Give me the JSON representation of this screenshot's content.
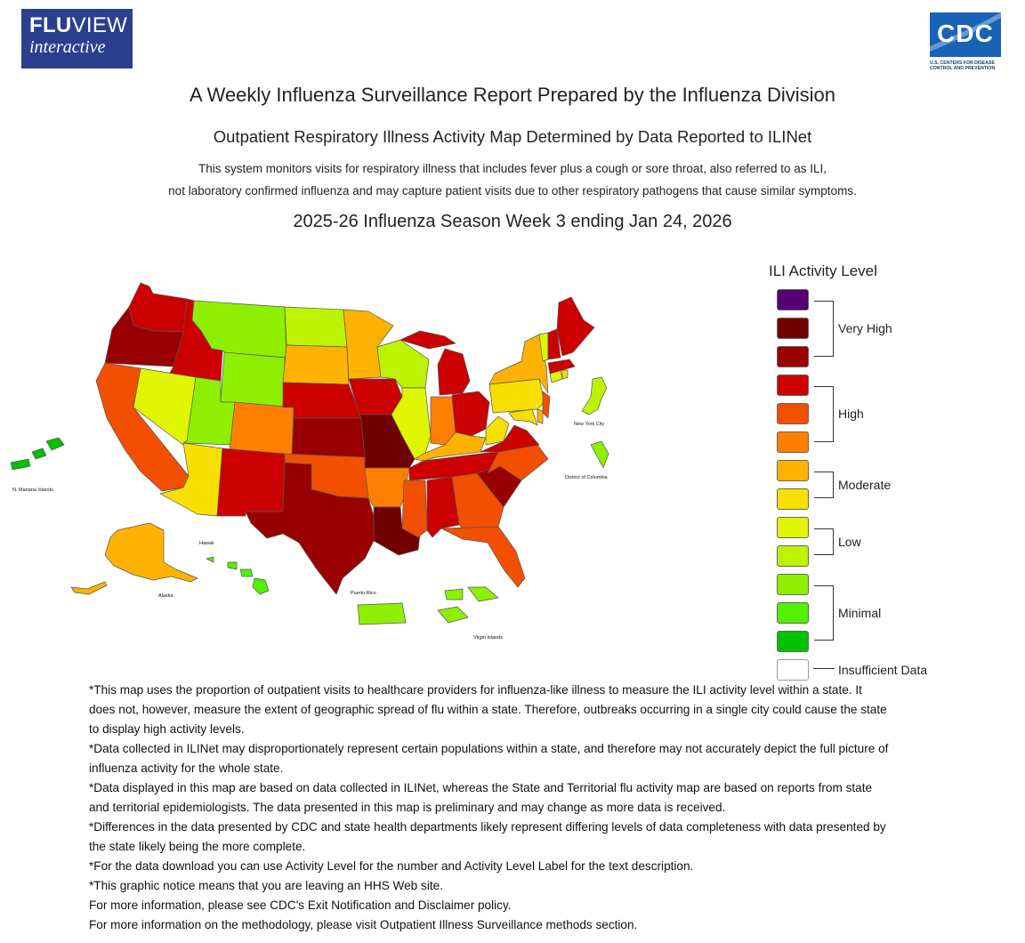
{
  "logo": {
    "fluview_bold": "FLU",
    "fluview_rest": "VIEW",
    "fluview_sub": "interactive",
    "cdc": "CDC",
    "cdc_sub1": "U.S. CENTERS FOR DISEASE",
    "cdc_sub2": "CONTROL AND PREVENTION"
  },
  "header": {
    "title": "A Weekly Influenza Surveillance Report Prepared by the Influenza Division",
    "subtitle": "Outpatient Respiratory Illness Activity Map Determined by Data Reported to ILINet",
    "desc1": "This system monitors visits for respiratory illness that includes fever plus a cough or sore throat, also referred to as ILI,",
    "desc2": "not laboratory confirmed influenza and may capture patient visits due to other respiratory pathogens that cause similar symptoms.",
    "season": "2025-26 Influenza Season Week 3 ending Jan 24, 2026"
  },
  "legend": {
    "title": "ILI Activity Level",
    "swatches": [
      "#540073",
      "#730000",
      "#990000",
      "#cc0000",
      "#f24f00",
      "#ff8000",
      "#ffb300",
      "#f7df00",
      "#e0f500",
      "#bdf200",
      "#8ef000",
      "#55f000",
      "#00c200",
      "#ffffff"
    ],
    "groups": [
      "Very High",
      "High",
      "Moderate",
      "Low",
      "Minimal",
      "Insufficient Data"
    ]
  },
  "map_labels": {
    "mariana": "N. Mariana Islands",
    "hawaii": "Hawaii",
    "alaska": "Alaska",
    "puerto_rico": "Puerto Rico",
    "virgin_islands": "Virgin Islands",
    "nyc": "New York City",
    "dc": "District of Columbia"
  },
  "notes": [
    "*This map uses the proportion of outpatient visits to healthcare providers for influenza-like illness to measure the ILI activity level within a state. It does not, however, measure the extent of geographic spread of flu within a state. Therefore, outbreaks occurring in a single city could cause the state to display high activity levels.",
    "*Data collected in ILINet may disproportionately represent certain populations within a state, and therefore may not accurately depict the full picture of influenza activity for the whole state.",
    "*Data displayed in this map are based on data collected in ILINet, whereas the State and Territorial flu activity map are based on reports from state and territorial epidemiologists. The data presented in this map is preliminary and may change as more data is received.",
    "*Differences in the data presented by CDC and state health departments likely represent differing levels of data completeness with data presented by the state likely being the more complete.",
    "*For the data download you can use Activity Level for the number and Activity Level Label for the text description.",
    "*This graphic notice means that you are leaving an HHS Web site.",
    "For more information, please see CDC's Exit Notification and Disclaimer policy.",
    "For more information on the methodology, please visit Outpatient Illness Surveillance methods section."
  ]
}
